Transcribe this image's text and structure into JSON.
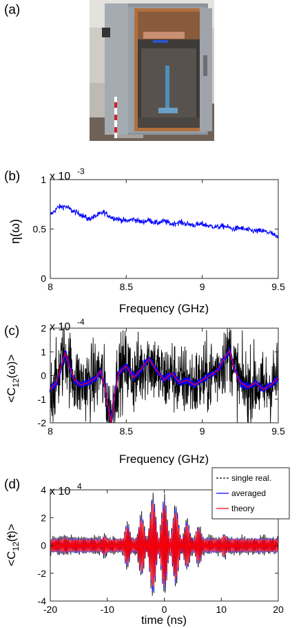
{
  "panels": {
    "a": "(a)",
    "b": "(b)",
    "c": "(c)",
    "d": "(d)"
  },
  "photo": {
    "description_icon": "photo-icon",
    "colors": {
      "wall": "#d8d5cf",
      "steel": "#8d949a",
      "copper": "#b5673a",
      "floor": "#5a5046"
    }
  },
  "chart_data": [
    {
      "id": "b",
      "type": "line",
      "xlabel": "Frequency (GHz)",
      "ylabel": "η(ω)",
      "multiplier": "x 10",
      "multiplier_exp": "-3",
      "xlim": [
        8,
        9.5
      ],
      "ylim": [
        0,
        1
      ],
      "xticks": [
        "8",
        "8.5",
        "9",
        "9.5"
      ],
      "yticks": [
        "0",
        "0.5",
        "1"
      ],
      "series": [
        {
          "color": "#0000ff",
          "x": [
            8.0,
            8.05,
            8.1,
            8.15,
            8.2,
            8.25,
            8.3,
            8.35,
            8.4,
            8.45,
            8.5,
            8.55,
            8.6,
            8.65,
            8.7,
            8.75,
            8.8,
            8.85,
            8.9,
            8.95,
            9.0,
            9.05,
            9.1,
            9.15,
            9.2,
            9.25,
            9.3,
            9.35,
            9.4,
            9.45,
            9.5
          ],
          "y": [
            0.64,
            0.72,
            0.73,
            0.68,
            0.65,
            0.6,
            0.63,
            0.67,
            0.62,
            0.6,
            0.58,
            0.6,
            0.57,
            0.59,
            0.56,
            0.58,
            0.55,
            0.57,
            0.55,
            0.54,
            0.55,
            0.53,
            0.52,
            0.53,
            0.5,
            0.51,
            0.49,
            0.48,
            0.48,
            0.46,
            0.41
          ],
          "noise": 0.05
        }
      ]
    },
    {
      "id": "c",
      "type": "line",
      "xlabel": "Frequency (GHz)",
      "ylabel": "<C",
      "ylabel_sub": "12",
      "ylabel_rest": "(ω)>",
      "multiplier": "x 10",
      "multiplier_exp": "-4",
      "xlim": [
        8,
        9.5
      ],
      "ylim": [
        -2,
        2
      ],
      "xticks": [
        "8",
        "8.5",
        "9",
        "9.5"
      ],
      "yticks": [
        "-2",
        "-1",
        "0",
        "1",
        "2"
      ],
      "series": [
        {
          "role": "single",
          "color": "#000000",
          "noise": 1.6
        },
        {
          "role": "averaged",
          "color": "#0000ff",
          "noise": 0.15
        },
        {
          "role": "theory",
          "color": "#ff0000",
          "x": [
            8.0,
            8.04,
            8.08,
            8.1,
            8.13,
            8.16,
            8.2,
            8.25,
            8.3,
            8.33,
            8.36,
            8.38,
            8.4,
            8.42,
            8.45,
            8.5,
            8.55,
            8.6,
            8.65,
            8.7,
            8.75,
            8.8,
            8.85,
            8.9,
            8.95,
            9.0,
            9.05,
            9.1,
            9.15,
            9.18,
            9.21,
            9.25,
            9.3,
            9.35,
            9.4,
            9.45,
            9.5
          ],
          "y": [
            -0.6,
            -0.3,
            0.6,
            0.95,
            0.3,
            -0.2,
            -0.4,
            -0.3,
            -0.1,
            0.2,
            -0.5,
            -1.3,
            -2.0,
            -0.9,
            0.1,
            0.4,
            -0.1,
            0.3,
            0.7,
            0.2,
            -0.2,
            0.1,
            -0.3,
            -0.2,
            -0.4,
            -0.2,
            0.0,
            0.2,
            0.8,
            1.05,
            0.3,
            -0.3,
            -0.5,
            -0.3,
            -0.6,
            -0.4,
            -0.1
          ]
        }
      ]
    },
    {
      "id": "d",
      "type": "line",
      "xlabel": "time (ns)",
      "ylabel": "<C",
      "ylabel_sub": "12",
      "ylabel_rest": "(t)>",
      "multiplier": "x 10",
      "multiplier_exp": "4",
      "xlim": [
        -20,
        20
      ],
      "ylim": [
        -4,
        4
      ],
      "xticks": [
        "-20",
        "-10",
        "0",
        "10",
        "20"
      ],
      "yticks": [
        "-4",
        "-2",
        "0",
        "2",
        "4"
      ],
      "legend": {
        "position": "top-right",
        "entries": [
          {
            "label": "single real.",
            "color": "#000000",
            "dash": true
          },
          {
            "label": "averaged",
            "color": "#0000ff",
            "dash": false
          },
          {
            "label": "theory",
            "color": "#ff0000",
            "dash": false
          }
        ]
      },
      "envelope_peaks": [
        {
          "t": -6.5,
          "a": 1.4
        },
        {
          "t": -4.0,
          "a": 2.0
        },
        {
          "t": -2.0,
          "a": 3.3
        },
        {
          "t": 0.0,
          "a": 3.1
        },
        {
          "t": 2.0,
          "a": 2.6
        },
        {
          "t": 4.0,
          "a": 1.6
        },
        {
          "t": 6.0,
          "a": 1.3
        },
        {
          "t": 10.5,
          "a": 0.8
        },
        {
          "t": -10.5,
          "a": 0.7
        },
        {
          "t": -17.5,
          "a": 0.6
        },
        {
          "t": 17.5,
          "a": 0.5
        }
      ]
    }
  ]
}
